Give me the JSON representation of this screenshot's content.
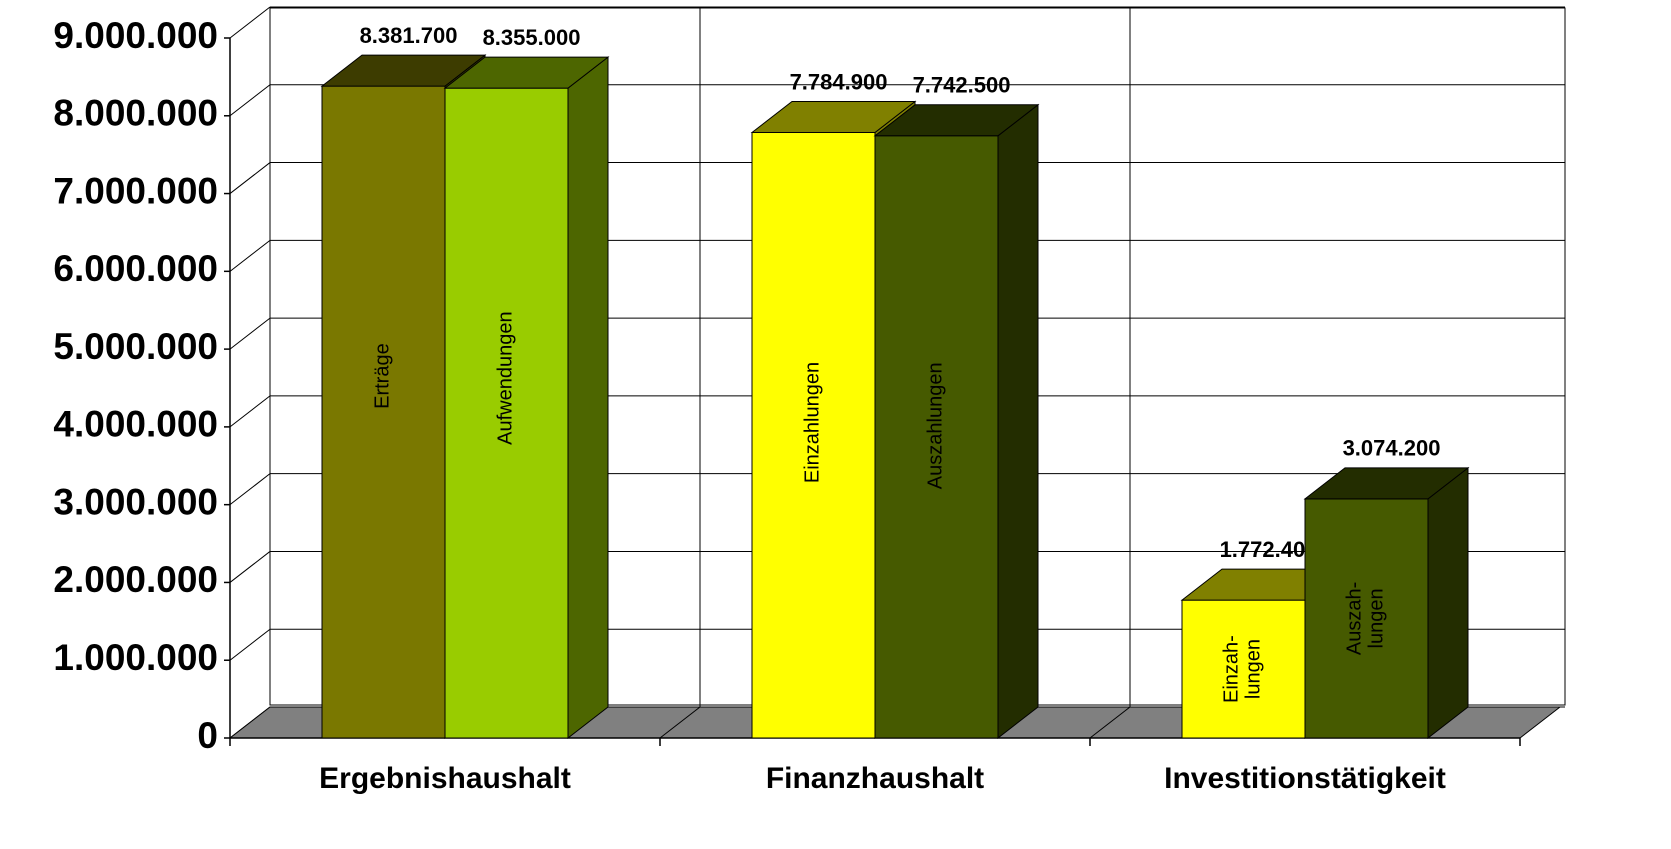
{
  "chart_data": {
    "type": "bar3d",
    "categories": [
      "Ergebnishaushalt",
      "Finanzhaushalt",
      "Investitionstätigkeit"
    ],
    "series": [
      {
        "colors": [
          "#7a7800",
          "#ffff00",
          "#ffff00"
        ],
        "values": [
          8381700,
          7784900,
          1772400
        ],
        "value_labels": [
          "8.381.700",
          "7.784.900",
          "1.772.400"
        ],
        "bar_labels": [
          [
            "Erträge"
          ],
          [
            "Einzahlungen"
          ],
          [
            "Einzah-",
            "lungen"
          ]
        ]
      },
      {
        "colors": [
          "#99cc00",
          "#465a00",
          "#465a00"
        ],
        "values": [
          8355000,
          7742500,
          3074200
        ],
        "value_labels": [
          "8.355.000",
          "7.742.500",
          "3.074.200"
        ],
        "bar_labels": [
          [
            "Aufwendungen"
          ],
          [
            "Auszahlungen"
          ],
          [
            "Auszah-",
            "lungen"
          ]
        ]
      }
    ],
    "ylim": [
      0,
      9000000
    ],
    "yticks": [
      0,
      {
        "value": 1000000,
        "label": "1.000.000"
      },
      {
        "value": 2000000,
        "label": "2.000.000"
      },
      {
        "value": 3000000,
        "label": "3.000.000"
      },
      {
        "value": 4000000,
        "label": "4.000.000"
      },
      {
        "value": 5000000,
        "label": "5.000.000"
      },
      {
        "value": 6000000,
        "label": "6.000.000"
      },
      {
        "value": 7000000,
        "label": "7.000.000"
      },
      {
        "value": 8000000,
        "label": "8.000.000"
      },
      {
        "value": 9000000,
        "label": "9.000.000"
      }
    ],
    "grid": true
  }
}
